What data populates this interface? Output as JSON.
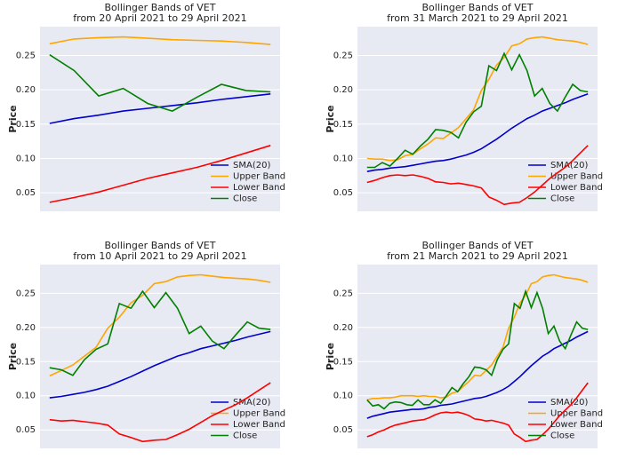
{
  "chart_data": [
    {
      "type": "line",
      "title": "Bollinger Bands of VET",
      "subtitle": "from 20 April 2021 to 29 April 2021",
      "ylabel": "Price",
      "categories": [
        null,
        null,
        null,
        null,
        null,
        null,
        null,
        null,
        null,
        null
      ],
      "series": [
        {
          "name": "SMA(20)",
          "color": "#0000cd",
          "values": [
            0.151,
            0.158,
            0.163,
            0.169,
            0.173,
            0.177,
            0.181,
            0.186,
            0.19,
            0.194
          ]
        },
        {
          "name": "Upper Band",
          "color": "#ffa500",
          "values": [
            0.267,
            0.274,
            0.276,
            0.277,
            0.275,
            0.273,
            0.272,
            0.271,
            0.269,
            0.266
          ]
        },
        {
          "name": "Lower Band",
          "color": "#ff0000",
          "values": [
            0.036,
            0.043,
            0.051,
            0.061,
            0.071,
            0.079,
            0.087,
            0.097,
            0.108,
            0.119
          ]
        },
        {
          "name": "Close",
          "color": "#008000",
          "values": [
            0.251,
            0.228,
            0.191,
            0.202,
            0.18,
            0.169,
            0.189,
            0.208,
            0.199,
            0.197
          ]
        }
      ],
      "ylim": [
        0.023,
        0.292
      ],
      "yticks": [
        0.05,
        {
          "value": 0.1,
          "label": "0.10"
        },
        0.15,
        {
          "value": 0.2,
          "label": "0.20"
        },
        0.25
      ],
      "grid": true,
      "legend": "lower right"
    },
    {
      "type": "line",
      "title": "Bollinger Bands of VET",
      "subtitle": "from 31 March 2021 to 29 April 2021",
      "ylabel": "Price",
      "categories": [
        null,
        null,
        null,
        null,
        null,
        null,
        null,
        null,
        null,
        null,
        null,
        null,
        null,
        null,
        null,
        null,
        null,
        null,
        null,
        null,
        null,
        null,
        null,
        null,
        null,
        null,
        null,
        null,
        null,
        null
      ],
      "series": [
        {
          "name": "SMA(20)",
          "color": "#0000cd",
          "values": [
            0.081,
            0.083,
            0.084,
            0.086,
            0.087,
            0.088,
            0.09,
            0.092,
            0.094,
            0.096,
            0.097,
            0.099,
            0.102,
            0.105,
            0.109,
            0.114,
            0.121,
            0.128,
            0.136,
            0.144,
            0.151,
            0.158,
            0.163,
            0.169,
            0.173,
            0.177,
            0.181,
            0.186,
            0.19,
            0.194
          ]
        },
        {
          "name": "Upper Band",
          "color": "#ffa500",
          "values": [
            0.1,
            0.099,
            0.099,
            0.097,
            0.098,
            0.104,
            0.106,
            0.114,
            0.121,
            0.13,
            0.129,
            0.137,
            0.145,
            0.158,
            0.171,
            0.199,
            0.215,
            0.236,
            0.247,
            0.264,
            0.267,
            0.274,
            0.276,
            0.277,
            0.275,
            0.273,
            0.272,
            0.271,
            0.269,
            0.266
          ]
        },
        {
          "name": "Lower Band",
          "color": "#ff0000",
          "values": [
            0.065,
            0.068,
            0.072,
            0.075,
            0.076,
            0.075,
            0.076,
            0.074,
            0.071,
            0.066,
            0.065,
            0.063,
            0.064,
            0.062,
            0.06,
            0.057,
            0.044,
            0.039,
            0.033,
            0.035,
            0.036,
            0.043,
            0.051,
            0.061,
            0.071,
            0.079,
            0.087,
            0.097,
            0.108,
            0.119
          ]
        },
        {
          "name": "Close",
          "color": "#008000",
          "values": [
            0.087,
            0.087,
            0.094,
            0.089,
            0.1,
            0.112,
            0.106,
            0.118,
            0.128,
            0.142,
            0.141,
            0.138,
            0.13,
            0.153,
            0.168,
            0.176,
            0.235,
            0.228,
            0.253,
            0.229,
            0.251,
            0.228,
            0.191,
            0.202,
            0.18,
            0.169,
            0.189,
            0.208,
            0.199,
            0.197
          ]
        }
      ],
      "ylim": [
        0.023,
        0.292
      ],
      "yticks": [
        0.05,
        {
          "value": 0.1,
          "label": "0.10"
        },
        0.15,
        {
          "value": 0.2,
          "label": "0.20"
        },
        0.25
      ],
      "grid": true,
      "legend": "lower right"
    },
    {
      "type": "line",
      "title": "Bollinger Bands of VET",
      "subtitle": "from 10 April 2021 to 29 April 2021",
      "ylabel": "Price",
      "categories": [
        null,
        null,
        null,
        null,
        null,
        null,
        null,
        null,
        null,
        null,
        null,
        null,
        null,
        null,
        null,
        null,
        null,
        null,
        null,
        null
      ],
      "series": [
        {
          "name": "SMA(20)",
          "color": "#0000cd",
          "values": [
            0.097,
            0.099,
            0.102,
            0.105,
            0.109,
            0.114,
            0.121,
            0.128,
            0.136,
            0.144,
            0.151,
            0.158,
            0.163,
            0.169,
            0.173,
            0.177,
            0.181,
            0.186,
            0.19,
            0.194
          ]
        },
        {
          "name": "Upper Band",
          "color": "#ffa500",
          "values": [
            0.129,
            0.137,
            0.145,
            0.158,
            0.171,
            0.199,
            0.215,
            0.236,
            0.247,
            0.264,
            0.267,
            0.274,
            0.276,
            0.277,
            0.275,
            0.273,
            0.272,
            0.271,
            0.269,
            0.266
          ]
        },
        {
          "name": "Lower Band",
          "color": "#ff0000",
          "values": [
            0.065,
            0.063,
            0.064,
            0.062,
            0.06,
            0.057,
            0.044,
            0.039,
            0.033,
            0.035,
            0.036,
            0.043,
            0.051,
            0.061,
            0.071,
            0.079,
            0.087,
            0.097,
            0.108,
            0.119
          ]
        },
        {
          "name": "Close",
          "color": "#008000",
          "values": [
            0.141,
            0.138,
            0.13,
            0.153,
            0.168,
            0.176,
            0.235,
            0.228,
            0.253,
            0.229,
            0.251,
            0.228,
            0.191,
            0.202,
            0.18,
            0.169,
            0.189,
            0.208,
            0.199,
            0.197
          ]
        }
      ],
      "ylim": [
        0.023,
        0.292
      ],
      "yticks": [
        0.05,
        {
          "value": 0.1,
          "label": "0.10"
        },
        0.15,
        {
          "value": 0.2,
          "label": "0.20"
        },
        0.25
      ],
      "grid": true,
      "legend": "lower right"
    },
    {
      "type": "line",
      "title": "Bollinger Bands of VET",
      "subtitle": "from 21 March 2021 to 29 April 2021",
      "ylabel": "Price",
      "categories": [
        null,
        null,
        null,
        null,
        null,
        null,
        null,
        null,
        null,
        null,
        null,
        null,
        null,
        null,
        null,
        null,
        null,
        null,
        null,
        null,
        null,
        null,
        null,
        null,
        null,
        null,
        null,
        null,
        null,
        null,
        null,
        null,
        null,
        null,
        null,
        null,
        null,
        null,
        null,
        null
      ],
      "series": [
        {
          "name": "SMA(20)",
          "color": "#0000cd",
          "values": [
            0.067,
            0.07,
            0.072,
            0.074,
            0.076,
            0.077,
            0.078,
            0.079,
            0.08,
            0.08,
            0.081,
            0.083,
            0.084,
            0.086,
            0.087,
            0.088,
            0.09,
            0.092,
            0.094,
            0.096,
            0.097,
            0.099,
            0.102,
            0.105,
            0.109,
            0.114,
            0.121,
            0.128,
            0.136,
            0.144,
            0.151,
            0.158,
            0.163,
            0.169,
            0.173,
            0.177,
            0.181,
            0.186,
            0.19,
            0.194
          ]
        },
        {
          "name": "Upper Band",
          "color": "#ffa500",
          "values": [
            0.094,
            0.096,
            0.096,
            0.097,
            0.097,
            0.098,
            0.1,
            0.1,
            0.1,
            0.099,
            0.1,
            0.099,
            0.099,
            0.097,
            0.098,
            0.104,
            0.106,
            0.114,
            0.121,
            0.13,
            0.129,
            0.137,
            0.145,
            0.158,
            0.171,
            0.199,
            0.215,
            0.236,
            0.247,
            0.264,
            0.267,
            0.274,
            0.276,
            0.277,
            0.275,
            0.273,
            0.272,
            0.271,
            0.269,
            0.266
          ]
        },
        {
          "name": "Lower Band",
          "color": "#ff0000",
          "values": [
            0.04,
            0.043,
            0.047,
            0.05,
            0.054,
            0.057,
            0.059,
            0.061,
            0.063,
            0.064,
            0.065,
            0.068,
            0.072,
            0.075,
            0.076,
            0.075,
            0.076,
            0.074,
            0.071,
            0.066,
            0.065,
            0.063,
            0.064,
            0.062,
            0.06,
            0.057,
            0.044,
            0.039,
            0.033,
            0.035,
            0.036,
            0.043,
            0.051,
            0.061,
            0.071,
            0.079,
            0.087,
            0.097,
            0.108,
            0.119
          ]
        },
        {
          "name": "Close",
          "color": "#008000",
          "values": [
            0.094,
            0.085,
            0.087,
            0.081,
            0.089,
            0.091,
            0.09,
            0.087,
            0.086,
            0.094,
            0.087,
            0.087,
            0.094,
            0.089,
            0.1,
            0.112,
            0.106,
            0.118,
            0.128,
            0.142,
            0.141,
            0.138,
            0.13,
            0.153,
            0.168,
            0.176,
            0.235,
            0.228,
            0.253,
            0.229,
            0.251,
            0.228,
            0.191,
            0.202,
            0.18,
            0.169,
            0.189,
            0.208,
            0.199,
            0.197
          ]
        }
      ],
      "ylim": [
        0.023,
        0.292
      ],
      "yticks": [
        0.05,
        {
          "value": 0.1,
          "label": "0.10"
        },
        0.15,
        {
          "value": 0.2,
          "label": "0.20"
        },
        0.25
      ],
      "grid": true,
      "legend": "lower right"
    }
  ]
}
